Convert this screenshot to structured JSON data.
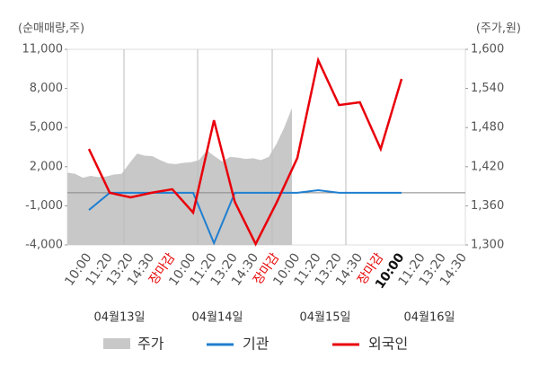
{
  "chart_data": {
    "type": "combo",
    "y_label": "(순매매량,주)",
    "y2_label": "(주가,원)",
    "categories": [
      "10:00",
      "11:20",
      "13:20",
      "14:30",
      "장마감",
      "10:00",
      "11:20",
      "13:20",
      "14:30",
      "장마감",
      "10:00",
      "11:20",
      "13:20",
      "14:30",
      "장마감",
      "10:00",
      "11:20",
      "13:20",
      "14:30"
    ],
    "marked_categories": [
      4,
      9,
      14
    ],
    "marked_color": "#e60000",
    "current_category": 15,
    "dates": [
      "04월13일",
      "04월14일",
      "04월15일",
      "04월16일"
    ],
    "ylim": [
      -4000,
      11000
    ],
    "yticks": [
      {
        "value": -4000,
        "label": "-4,000"
      },
      {
        "value": -1000,
        "label": "-1,000"
      },
      {
        "value": 2000,
        "label": "2,000"
      },
      {
        "value": 5000,
        "label": "5,000"
      },
      {
        "value": 8000,
        "label": "8,000"
      },
      {
        "value": 11000,
        "label": "11,000"
      }
    ],
    "y2lim": [
      1300,
      1600
    ],
    "y2ticks": [
      {
        "value": 1300,
        "label": "1,300"
      },
      {
        "value": 1360,
        "label": "1,360"
      },
      {
        "value": 1420,
        "label": "1,420"
      },
      {
        "value": 1480,
        "label": "1,480"
      },
      {
        "value": 1540,
        "label": "1,540"
      },
      {
        "value": 1600,
        "label": "1,600"
      }
    ],
    "area_series": {
      "name": "주가",
      "color": "#c8c8c8",
      "axis": "y2",
      "values": [
        1411,
        1409,
        1403,
        1406,
        1404,
        1405,
        1408,
        1409,
        1425,
        1440,
        1437,
        1436,
        1430,
        1425,
        1424,
        1426,
        1427,
        1430,
        1445,
        1436,
        1428,
        1435,
        1434,
        1432,
        1433,
        1430,
        1435,
        1455,
        1480,
        1510
      ]
    },
    "series": [
      {
        "name": "기관",
        "color": "#1f7fd0",
        "values": [
          -1320,
          0,
          0,
          0,
          0,
          0,
          -3860,
          0,
          0,
          0,
          0,
          200,
          0,
          0,
          0,
          0,
          null,
          null,
          null
        ]
      },
      {
        "name": "외국인",
        "color": "#e8000b",
        "values": [
          3360,
          0,
          -350,
          0,
          270,
          -1520,
          5560,
          -700,
          -3930,
          -770,
          2670,
          10170,
          6730,
          6940,
          3360,
          8730,
          null,
          null,
          null
        ]
      }
    ],
    "legend": "bottom"
  }
}
